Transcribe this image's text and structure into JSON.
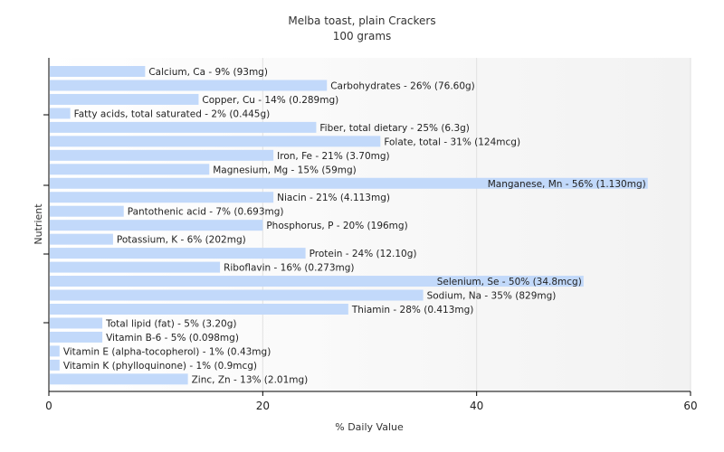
{
  "chart_data": {
    "type": "bar",
    "orientation": "horizontal",
    "title": "Melba toast, plain Crackers",
    "subtitle": "100 grams",
    "xlabel": "% Daily Value",
    "ylabel": "Nutrient",
    "xlim": [
      0,
      60
    ],
    "xticks": [
      0,
      20,
      40,
      60
    ],
    "grid": true,
    "bar_color": "#c2d9fa",
    "categories": [
      "Calcium, Ca - 9% (93mg)",
      "Carbohydrates - 26% (76.60g)",
      "Copper, Cu - 14% (0.289mg)",
      "Fatty acids, total saturated - 2% (0.445g)",
      "Fiber, total dietary - 25% (6.3g)",
      "Folate, total - 31% (124mcg)",
      "Iron, Fe - 21% (3.70mg)",
      "Magnesium, Mg - 15% (59mg)",
      "Manganese, Mn - 56% (1.130mg)",
      "Niacin - 21% (4.113mg)",
      "Pantothenic acid - 7% (0.693mg)",
      "Phosphorus, P - 20% (196mg)",
      "Potassium, K - 6% (202mg)",
      "Protein - 24% (12.10g)",
      "Riboflavin - 16% (0.273mg)",
      "Selenium, Se - 50% (34.8mcg)",
      "Sodium, Na - 35% (829mg)",
      "Thiamin - 28% (0.413mg)",
      "Total lipid (fat) - 5% (3.20g)",
      "Vitamin B-6 - 5% (0.098mg)",
      "Vitamin E (alpha-tocopherol) - 1% (0.43mg)",
      "Vitamin K (phylloquinone) - 1% (0.9mcg)",
      "Zinc, Zn - 13% (2.01mg)"
    ],
    "values": [
      9,
      26,
      14,
      2,
      25,
      31,
      21,
      15,
      56,
      21,
      7,
      20,
      6,
      24,
      16,
      50,
      35,
      28,
      5,
      5,
      1,
      1,
      13
    ]
  }
}
